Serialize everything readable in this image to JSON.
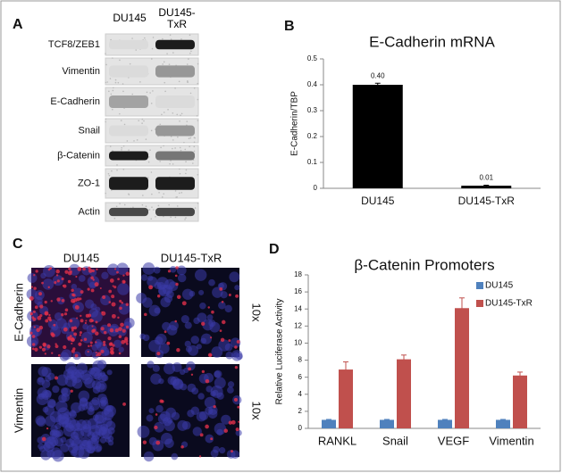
{
  "panel_a": {
    "label": "A",
    "columns": [
      "DU145",
      "DU145-TxR"
    ],
    "rows": [
      "TCF8/ZEB1",
      "Vimentin",
      "E-Cadherin",
      "Snail",
      "β-Catenin",
      "ZO-1",
      "Actin"
    ]
  },
  "panel_c": {
    "label": "C",
    "columns": [
      "DU145",
      "DU145-TxR"
    ],
    "rows": [
      "E-Cadherin",
      "Vimentin"
    ],
    "magnification": "10x"
  },
  "chart_data": [
    {
      "type": "bar",
      "label": "B",
      "title": "E-Cadherin mRNA",
      "y_label": "E-Cadherin/TBP",
      "categories": [
        "DU145",
        "DU145-TxR"
      ],
      "values": [
        0.4,
        0.01
      ],
      "value_labels": [
        "0.40",
        "0.01"
      ],
      "errors": [
        0.006,
        0.002
      ],
      "color": "#000000",
      "ylim": [
        0,
        0.5
      ],
      "yticks": [
        0,
        0.1,
        0.2,
        0.3,
        0.4,
        0.5
      ]
    },
    {
      "type": "grouped_bar",
      "label": "D",
      "title": "β-Catenin Promoters",
      "y_label": "Relative Luciferase Activity",
      "categories": [
        "RANKL",
        "Snail",
        "VEGF",
        "Vimentin"
      ],
      "series": [
        {
          "name": "DU145",
          "color": "#4f81bd",
          "values": [
            1,
            1,
            1,
            1
          ],
          "errors": [
            0.05,
            0.05,
            0.05,
            0.05
          ]
        },
        {
          "name": "DU145-TxR",
          "color": "#c0504d",
          "values": [
            6.9,
            8.1,
            14.1,
            6.2
          ],
          "errors": [
            0.9,
            0.5,
            1.2,
            0.4
          ]
        }
      ],
      "ylim": [
        0,
        18
      ],
      "yticks": [
        0,
        2,
        4,
        6,
        8,
        10,
        12,
        14,
        16,
        18
      ],
      "legend": "top-right"
    }
  ]
}
